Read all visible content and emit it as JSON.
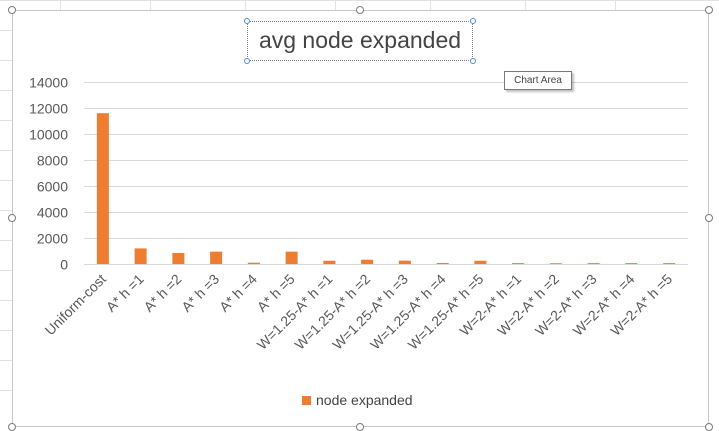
{
  "chart_data": {
    "type": "bar",
    "title": "avg node expanded",
    "categories": [
      "Uniform-cost",
      "A* h =1",
      "A* h =2",
      "A* h =3",
      "A* h =4",
      "A* h =5",
      "W=1.25-A* h =1",
      "W=1.25-A* h =2",
      "W=1.25-A* h =3",
      "W=1.25-A* h =4",
      "W=1.25-A* h =5",
      "W=2-A* h =1",
      "W=2-A* h =2",
      "W=2-A* h =3",
      "W=2-A* h =4",
      "W=2-A* h =5"
    ],
    "series": [
      {
        "name": "node expanded",
        "values": [
          11600,
          1200,
          850,
          950,
          100,
          950,
          250,
          330,
          260,
          80,
          250,
          70,
          60,
          70,
          70,
          70
        ]
      }
    ],
    "yticks": [
      "0",
      "2000",
      "4000",
      "6000",
      "8000",
      "10000",
      "12000",
      "14000"
    ],
    "ylim": [
      0,
      14000
    ],
    "grid": true,
    "legend_position": "bottom",
    "colors": {
      "bar": "#ed7d31",
      "grid": "#d9d9d9",
      "text": "#595959"
    }
  },
  "tooltip": {
    "text": "Chart Area"
  },
  "legend": {
    "label": "node expanded"
  }
}
